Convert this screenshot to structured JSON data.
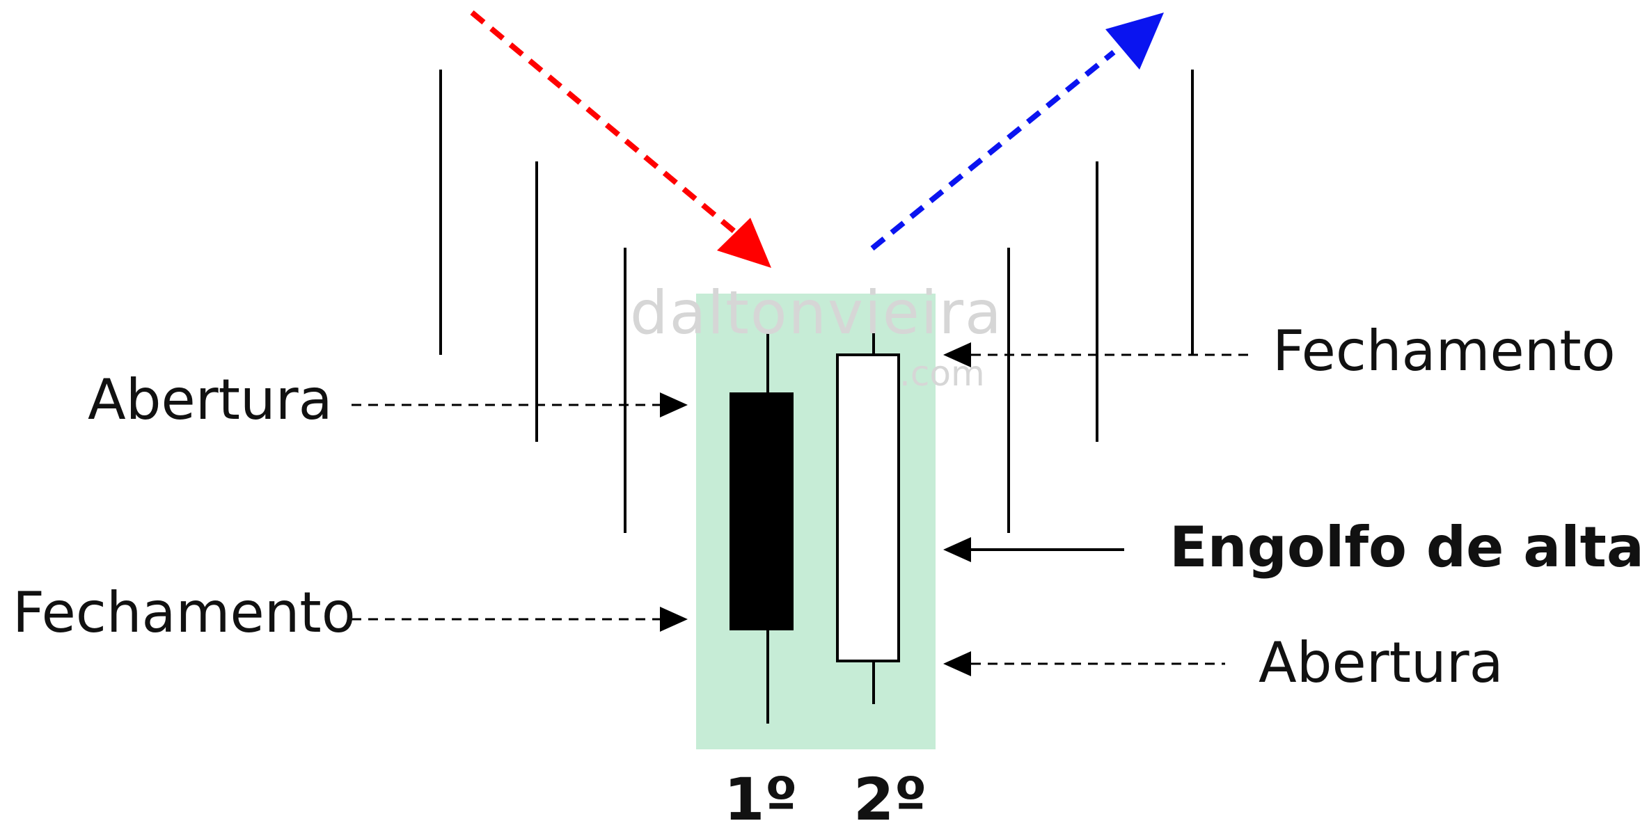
{
  "labels": {
    "abertura_left": "Abertura",
    "fechamento_left": "Fechamento",
    "fechamento_right": "Fechamento",
    "engolfo": "Engolfo de alta",
    "abertura_right": "Abertura",
    "candle_first": "1º",
    "candle_second": "2º"
  },
  "watermark": {
    "name": "daltonvieira",
    "domain": ".com"
  },
  "colors": {
    "highlight": "#c6ecd6",
    "trend_down_arrow": "#ff0000",
    "trend_up_arrow": "#0a14f0",
    "bearish_body": "#000000",
    "bullish_body": "#ffffff",
    "line": "#000000"
  },
  "icons": {
    "down_trend": "dashed-arrow-down-right",
    "up_trend": "dashed-arrow-up-right"
  }
}
